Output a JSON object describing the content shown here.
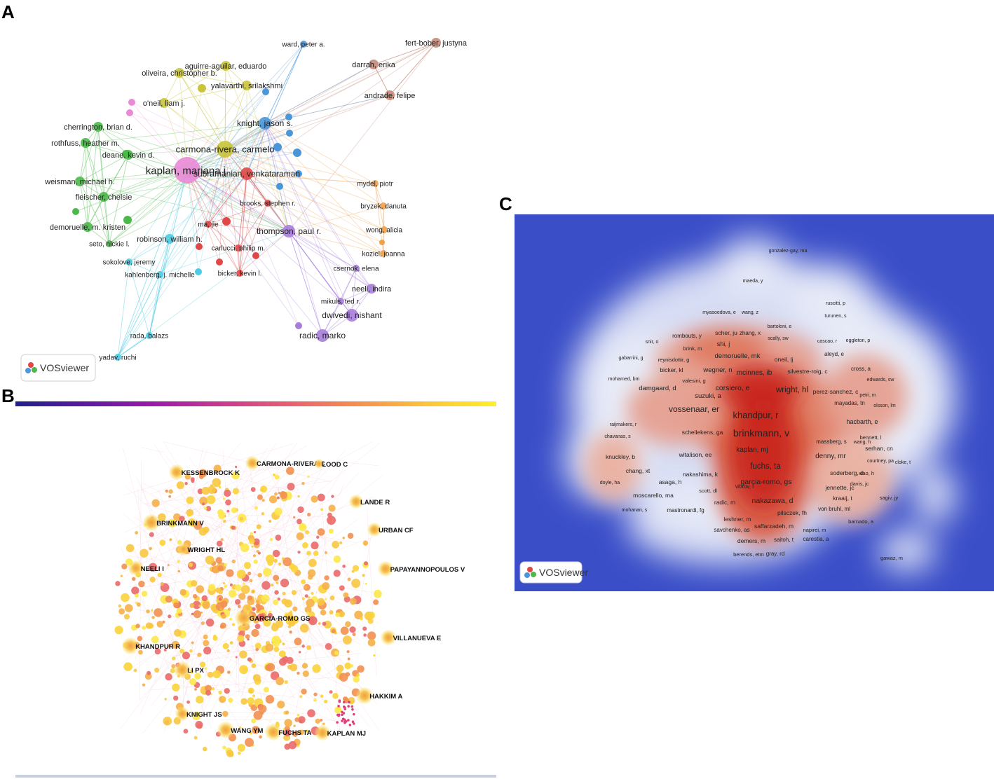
{
  "panels": {
    "a": {
      "letter": "A",
      "logo_text": "VOSviewer",
      "clusters": {
        "pink": "#e98ad6",
        "yellow": "#c9c43a",
        "blue": "#4a96d8",
        "green": "#4cb84a",
        "red": "#e04848",
        "purple": "#a77ddc",
        "cyan": "#4ccbe3",
        "orange": "#f2a04a",
        "brown": "#c48a7a"
      },
      "nodes": [
        {
          "id": "kaplan",
          "label": "kaplan, mariana j.",
          "cluster": "pink",
          "weight": 5
        },
        {
          "id": "carmona",
          "label": "carmona-rivera, carmelo",
          "cluster": "yellow",
          "weight": 4
        },
        {
          "id": "aguirre",
          "label": "aguirre-aguilar, eduardo",
          "cluster": "yellow",
          "weight": 2
        },
        {
          "id": "oliveira",
          "label": "oliveira, christopher b.",
          "cluster": "yellow",
          "weight": 2
        },
        {
          "id": "yalavarthi",
          "label": "yalavarthi, srilakshmi",
          "cluster": "yellow",
          "weight": 2
        },
        {
          "id": "oneil",
          "label": "o'neil, liam j.",
          "cluster": "yellow",
          "weight": 2
        },
        {
          "id": "ward",
          "label": "ward, peter a.",
          "cluster": "blue",
          "weight": 1
        },
        {
          "id": "knight",
          "label": "knight, jason s.",
          "cluster": "blue",
          "weight": 3
        },
        {
          "id": "subramanian",
          "label": "subramanian, venkataraman",
          "cluster": "red",
          "weight": 3
        },
        {
          "id": "brooks",
          "label": "brooks, stephen r.",
          "cluster": "red",
          "weight": 1
        },
        {
          "id": "majie",
          "label": "ma, jie",
          "cluster": "red",
          "weight": 1
        },
        {
          "id": "carlucci",
          "label": "carlucci, philip m.",
          "cluster": "red",
          "weight": 1
        },
        {
          "id": "bicker",
          "label": "bicker, kevin l.",
          "cluster": "red",
          "weight": 1
        },
        {
          "id": "cherrington",
          "label": "cherrington, brian d.",
          "cluster": "green",
          "weight": 2
        },
        {
          "id": "rothfuss",
          "label": "rothfuss, heather m.",
          "cluster": "green",
          "weight": 2
        },
        {
          "id": "deane",
          "label": "deane, kevin d.",
          "cluster": "green",
          "weight": 2
        },
        {
          "id": "weisman",
          "label": "weisman, michael h.",
          "cluster": "green",
          "weight": 2
        },
        {
          "id": "fleischer",
          "label": "fleischer, chelsie",
          "cluster": "green",
          "weight": 2
        },
        {
          "id": "demoruelle",
          "label": "demoruelle, m. kristen",
          "cluster": "green",
          "weight": 2
        },
        {
          "id": "seto",
          "label": "seto, nickie l.",
          "cluster": "green",
          "weight": 1
        },
        {
          "id": "robinson",
          "label": "robinson, william h.",
          "cluster": "cyan",
          "weight": 2
        },
        {
          "id": "sokolove",
          "label": "sokolove, jeremy",
          "cluster": "cyan",
          "weight": 1
        },
        {
          "id": "kahlenberg",
          "label": "kahlenberg, j. michelle",
          "cluster": "cyan",
          "weight": 1
        },
        {
          "id": "rada",
          "label": "rada, balazs",
          "cluster": "cyan",
          "weight": 1
        },
        {
          "id": "yadav",
          "label": "yadav, ruchi",
          "cluster": "cyan",
          "weight": 1
        },
        {
          "id": "thompson",
          "label": "thompson, paul r.",
          "cluster": "purple",
          "weight": 3
        },
        {
          "id": "csernok",
          "label": "csernok, elena",
          "cluster": "purple",
          "weight": 1
        },
        {
          "id": "neeli",
          "label": "neeli, indira",
          "cluster": "purple",
          "weight": 2
        },
        {
          "id": "mikuls",
          "label": "mikuls, ted r.",
          "cluster": "purple",
          "weight": 1
        },
        {
          "id": "dwivedi",
          "label": "dwivedi, nishant",
          "cluster": "purple",
          "weight": 3
        },
        {
          "id": "radic",
          "label": "radic, marko",
          "cluster": "purple",
          "weight": 3
        },
        {
          "id": "mydel",
          "label": "mydel, piotr",
          "cluster": "orange",
          "weight": 1
        },
        {
          "id": "bryzek",
          "label": "bryzek, danuta",
          "cluster": "orange",
          "weight": 1
        },
        {
          "id": "wong",
          "label": "wong, alicia",
          "cluster": "orange",
          "weight": 1
        },
        {
          "id": "koziel",
          "label": "koziel, joanna",
          "cluster": "orange",
          "weight": 1
        },
        {
          "id": "fertbober",
          "label": "fert-bober, justyna",
          "cluster": "brown",
          "weight": 2
        },
        {
          "id": "darrah",
          "label": "darrah, erika",
          "cluster": "brown",
          "weight": 2
        },
        {
          "id": "andrade",
          "label": "andrade, felipe",
          "cluster": "brown",
          "weight": 2
        }
      ]
    },
    "b": {
      "letter": "B",
      "labels": [
        "CARMONA-RIVERA C",
        "KESSENBROCK K",
        "LOOD C",
        "LANDE R",
        "BRINKMANN V",
        "URBAN CF",
        "WRIGHT HL",
        "NEELI I",
        "PAPAYANNOPOULOS V",
        "GARCIA-ROMO GS",
        "VILLANUEVA E",
        "KHANDPUR R",
        "LI PX",
        "HAKKIM A",
        "KNIGHT JS",
        "WANG YM",
        "FUCHS TA",
        "KAPLAN MJ"
      ],
      "colorbar": [
        "#20208a",
        "#5a1aa0",
        "#9a1aa8",
        "#c83a90",
        "#e86070",
        "#f59050",
        "#fbc53a",
        "#fdf02a"
      ]
    },
    "c": {
      "letter": "C",
      "logo_text": "VOSviewer",
      "background": "#3a4ec8",
      "labels": [
        "gonzalez-gay, ma",
        "maeda, y",
        "ruscitti, p",
        "myasoedova, e",
        "wang, z",
        "turunen, s",
        "bartoloni, e",
        "snir, o",
        "rombouts, y",
        "scher, ju",
        "zhang, x",
        "scally, sw",
        "cascao, r",
        "eggleton, p",
        "brink, m",
        "shi, j",
        "gabarrini, g",
        "reynisdottir, g",
        "demoruelle, mk",
        "oneil, lj",
        "aleyd, e",
        "bicker, kl",
        "wegner, n",
        "mcinnes, ib",
        "silvestre-roig, c",
        "cross, a",
        "mohamed, bm",
        "valesini, g",
        "edwards, sw",
        "damgaard, d",
        "corsiero, e",
        "wright, hl",
        "perez-sanchez, c",
        "petri, m",
        "suzuki, a",
        "mayadas, tn",
        "olsson, lm",
        "vossenaar, er",
        "khandpur, r",
        "hacbarth, e",
        "raijmakers, r",
        "chavanas, s",
        "schellekens, ga",
        "brinkmann, v",
        "bennett, l",
        "massberg, s",
        "wang, h",
        "kaplan, mj",
        "serhan, cn",
        "witalison, ee",
        "denny, mr",
        "knuckley, b",
        "courtney, pa",
        "cloke, t",
        "fuchs, ta",
        "chang, xt",
        "nakashima, k",
        "soderberg, d",
        "xiao, h",
        "doyle, ha",
        "asaga, h",
        "garcia-romo, gs",
        "davis, jc",
        "vitkov, l",
        "jennette, jc",
        "scott, dl",
        "moscarello, ma",
        "sagiv, jy",
        "kraaij, t",
        "radic, m",
        "nakazawa, d",
        "mohanan, s",
        "mastronardi, fg",
        "von bruhl, ml",
        "pilsczek, fh",
        "barnado, a",
        "leshner, m",
        "savchenko, as",
        "saffarzadeh, m",
        "napirei, m",
        "demers, m",
        "saitoh, t",
        "carestia, a",
        "berends, etm",
        "gray, rd",
        "gawaz, m"
      ]
    }
  }
}
